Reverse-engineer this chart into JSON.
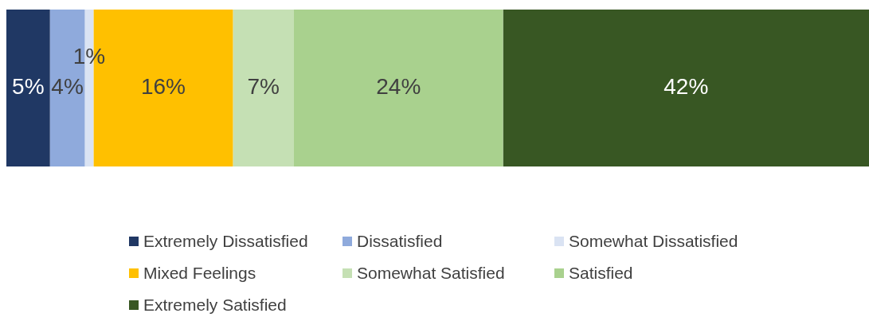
{
  "chart_data": {
    "type": "bar",
    "orientation": "horizontal",
    "stacked": true,
    "categories": [
      null
    ],
    "legend": "bottom",
    "series": [
      {
        "name": "Extremely Dissatisfied",
        "color": "#203864",
        "values": [
          5
        ],
        "value_labels": [
          "5%"
        ]
      },
      {
        "name": "Dissatisfied",
        "color": "#8faadc",
        "values": [
          4
        ],
        "value_labels": [
          "4%"
        ]
      },
      {
        "name": "Somewhat Dissatisfied",
        "color": "#dae3f3",
        "values": [
          1
        ],
        "value_labels": [
          "1%"
        ]
      },
      {
        "name": "Mixed Feelings",
        "color": "#ffc000",
        "values": [
          16
        ],
        "value_labels": [
          "16%"
        ]
      },
      {
        "name": "Somewhat Satisfied",
        "color": "#c5e0b4",
        "values": [
          7
        ],
        "value_labels": [
          "7%"
        ]
      },
      {
        "name": "Satisfied",
        "color": "#a9d18e",
        "values": [
          24
        ],
        "value_labels": [
          "24%"
        ]
      },
      {
        "name": "Extremely Satisfied",
        "color": "#385723",
        "values": [
          42
        ],
        "value_labels": [
          "42%"
        ]
      }
    ]
  }
}
